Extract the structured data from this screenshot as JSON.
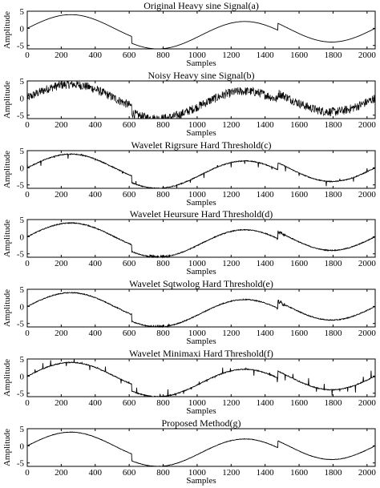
{
  "chart_data": {
    "type": "line",
    "line_color": "#000000",
    "background": "#ffffff",
    "grid": false,
    "legend": "none",
    "signal": "heavy_sine",
    "xlim": [
      0,
      2048
    ],
    "ylim": [
      -6,
      5
    ],
    "x_ticks": [
      0,
      200,
      400,
      600,
      800,
      1000,
      1200,
      1400,
      1600,
      1800,
      2000
    ],
    "y_ticks": [
      5,
      0,
      -5
    ],
    "xlabel": "Samples",
    "ylabel": "Amplitude",
    "panels": [
      {
        "title": "Original Heavy sine Signal(a)",
        "variant": "clean"
      },
      {
        "title": "Noisy Heavy sine Signal(b)",
        "variant": "noisy"
      },
      {
        "title": "Wavelet Rigrsure Hard Threshold(c)",
        "variant": "spiky_small"
      },
      {
        "title": "Wavelet Heursure Hard Threshold(d)",
        "variant": "denoised"
      },
      {
        "title": "Wavelet Sqtwolog Hard Threshold(e)",
        "variant": "denoised"
      },
      {
        "title": "Wavelet Minimaxi Hard Threshold(f)",
        "variant": "spiky_large"
      },
      {
        "title": "Proposed Method(g)",
        "variant": "denoised_light"
      }
    ]
  }
}
